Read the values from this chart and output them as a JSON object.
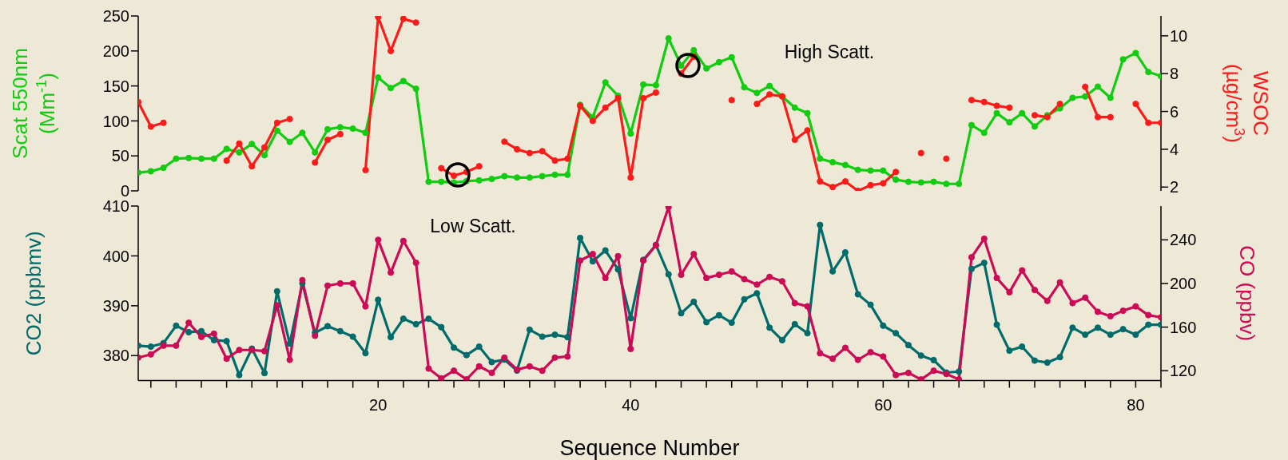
{
  "chart_data": [
    {
      "type": "line",
      "xlim": [
        1,
        82
      ],
      "tick_labels": "y",
      "ylabel": "Scat 550nm\n(Mm$^{-1}$)",
      "y2label": "WSOC\n(µg/cm$^{3}$)",
      "ylim": [
        0,
        250
      ],
      "yticks": [
        0,
        50,
        100,
        150,
        200,
        250
      ],
      "y2lim": [
        1.8,
        11.05
      ],
      "y2ticks": [
        2,
        4,
        6,
        8,
        10
      ],
      "marker": "circle",
      "annotations": [
        "High Scatt."
      ],
      "x": [
        1,
        2,
        3,
        4,
        5,
        6,
        7,
        8,
        9,
        10,
        11,
        12,
        13,
        14,
        15,
        16,
        17,
        18,
        19,
        20,
        21,
        22,
        23,
        24,
        25,
        26,
        27,
        28,
        29,
        30,
        31,
        32,
        33,
        34,
        35,
        36,
        37,
        38,
        39,
        40,
        41,
        42,
        43,
        44,
        45,
        46,
        47,
        48,
        49,
        50,
        51,
        52,
        53,
        54,
        55,
        56,
        57,
        58,
        59,
        60,
        61,
        62,
        63,
        64,
        65,
        66,
        67,
        68,
        69,
        70,
        71,
        72,
        73,
        74,
        75,
        76,
        77,
        78,
        79,
        80,
        81,
        82
      ],
      "series": [
        {
          "color": "#11cc11",
          "values": [
            26,
            28,
            33,
            46,
            47,
            46,
            46,
            60,
            55,
            67,
            51,
            86,
            70,
            83,
            55,
            88,
            91,
            89,
            83,
            162,
            147,
            157,
            146,
            13,
            13,
            12,
            14,
            15,
            17,
            21,
            19,
            19,
            21,
            23,
            23,
            123,
            105,
            155,
            136,
            82,
            152,
            151,
            218,
            179,
            201,
            175,
            184,
            191,
            148,
            140,
            150,
            135,
            119,
            111,
            46,
            41,
            37,
            30,
            29,
            29,
            16,
            13,
            12,
            13,
            10,
            10,
            94,
            83,
            111,
            98,
            111,
            92,
            108,
            118,
            133,
            135,
            149,
            133,
            188,
            197,
            170,
            164
          ]
        },
        {
          "color": "#ff1a1a",
          "axis": "y2",
          "values": [
            6.5,
            5.2,
            5.4,
            null,
            null,
            null,
            null,
            3.4,
            4.3,
            3.1,
            4.1,
            5.4,
            5.6,
            null,
            3.3,
            4.5,
            4.8,
            null,
            2.9,
            11.0,
            9.2,
            10.9,
            10.7,
            null,
            3.0,
            2.6,
            2.8,
            3.1,
            null,
            4.4,
            4.0,
            3.8,
            3.9,
            3.4,
            3.5,
            6.3,
            5.5,
            6.2,
            6.7,
            2.5,
            6.7,
            7.0,
            null,
            8.0,
            8.9,
            null,
            null,
            6.6,
            null,
            6.4,
            6.9,
            6.8,
            4.5,
            5.0,
            2.3,
            2.0,
            2.3,
            1.8,
            2.1,
            2.2,
            2.8,
            null,
            3.8,
            null,
            3.5,
            null,
            6.6,
            6.5,
            6.3,
            6.2,
            null,
            5.8,
            5.7,
            6.4,
            null,
            7.3,
            5.7,
            5.7,
            null,
            6.4,
            5.4,
            5.4
          ]
        }
      ]
    },
    {
      "type": "line",
      "xlim": [
        1,
        82
      ],
      "xticks": [
        {
          "value": 2,
          "label": null
        },
        {
          "value": 4,
          "label": null
        },
        {
          "value": 6,
          "label": null
        },
        {
          "value": 8,
          "label": null
        },
        {
          "value": 10,
          "label": null
        },
        {
          "value": 12,
          "label": null
        },
        {
          "value": 14,
          "label": null
        },
        {
          "value": 16,
          "label": null
        },
        {
          "value": 18,
          "label": null
        },
        20,
        {
          "value": 22,
          "label": null
        },
        {
          "value": 24,
          "label": null
        },
        {
          "value": 26,
          "label": null
        },
        {
          "value": 28,
          "label": null
        },
        {
          "value": 30,
          "label": null
        },
        {
          "value": 32,
          "label": null
        },
        {
          "value": 34,
          "label": null
        },
        {
          "value": 36,
          "label": null
        },
        {
          "value": 38,
          "label": null
        },
        40,
        {
          "value": 42,
          "label": null
        },
        {
          "value": 44,
          "label": null
        },
        {
          "value": 46,
          "label": null
        },
        {
          "value": 48,
          "label": null
        },
        {
          "value": 50,
          "label": null
        },
        {
          "value": 52,
          "label": null
        },
        {
          "value": 54,
          "label": null
        },
        {
          "value": 56,
          "label": null
        },
        {
          "value": 58,
          "label": null
        },
        60,
        {
          "value": 62,
          "label": null
        },
        {
          "value": 64,
          "label": null
        },
        {
          "value": 66,
          "label": null
        },
        {
          "value": 68,
          "label": null
        },
        {
          "value": 70,
          "label": null
        },
        {
          "value": 72,
          "label": null
        },
        {
          "value": 74,
          "label": null
        },
        {
          "value": 76,
          "label": null
        },
        {
          "value": 78,
          "label": null
        },
        80,
        {
          "value": 82,
          "label": null
        }
      ],
      "xlabel": "Sequence Number",
      "ylabel": "CO2 (ppbmv)",
      "y2label": "CO (ppbv)",
      "ylim": [
        375,
        410
      ],
      "yticks": [
        380,
        390,
        400,
        410
      ],
      "y2lim": [
        111,
        271
      ],
      "y2ticks": [
        120,
        160,
        200,
        240
      ],
      "marker": "circle",
      "annotations": [
        "Low Scatt."
      ],
      "x": [
        1,
        2,
        3,
        4,
        5,
        6,
        7,
        8,
        9,
        10,
        11,
        12,
        13,
        14,
        15,
        16,
        17,
        18,
        19,
        20,
        21,
        22,
        23,
        24,
        25,
        26,
        27,
        28,
        29,
        30,
        31,
        32,
        33,
        34,
        35,
        36,
        37,
        38,
        39,
        40,
        41,
        42,
        43,
        44,
        45,
        46,
        47,
        48,
        49,
        50,
        51,
        52,
        53,
        54,
        55,
        56,
        57,
        58,
        59,
        60,
        61,
        62,
        63,
        64,
        65,
        66,
        67,
        68,
        69,
        70,
        71,
        72,
        73,
        74,
        75,
        76,
        77,
        78,
        79,
        80,
        81,
        82
      ],
      "series": [
        {
          "color": "#006b6b",
          "values": [
            382.0,
            381.8,
            382.5,
            386.0,
            384.7,
            384.9,
            383.1,
            382.9,
            376.1,
            381.4,
            376.5,
            392.9,
            382.4,
            394.5,
            384.6,
            385.9,
            384.9,
            383.8,
            380.5,
            391.2,
            383.7,
            387.4,
            386.3,
            387.4,
            385.7,
            381.6,
            380.1,
            381.8,
            378.7,
            379.2,
            377.0,
            385.2,
            383.8,
            384.2,
            383.7,
            403.6,
            398.9,
            401.1,
            397.3,
            387.5,
            399.2,
            402.2,
            396.3,
            388.5,
            390.8,
            386.7,
            388.1,
            386.6,
            391.3,
            392.5,
            385.6,
            383.1,
            386.3,
            384.5,
            406.2,
            396.9,
            400.7,
            392.3,
            390.2,
            386.0,
            384.5,
            382.1,
            380.0,
            379.1,
            376.6,
            376.8,
            397.4,
            398.6,
            386.2,
            381.0,
            381.8,
            379.0,
            378.6,
            379.7,
            385.6,
            384.2,
            385.6,
            384.2,
            385.3,
            384.2,
            386.2,
            386.2
          ]
        },
        {
          "color": "#cc0a55",
          "axis": "y2",
          "values": [
            132,
            135,
            143,
            143,
            164,
            151,
            154,
            131,
            139,
            139,
            138,
            180,
            130,
            203,
            152,
            198,
            200,
            200,
            179,
            240,
            210,
            239,
            219,
            122,
            113,
            120,
            112,
            124,
            118,
            132,
            121,
            124,
            120,
            132,
            133,
            221,
            227,
            205,
            225,
            140,
            221,
            235,
            270,
            208,
            227,
            205,
            208,
            211,
            204,
            199,
            206,
            202,
            182,
            179,
            136,
            131,
            141,
            130,
            137,
            133,
            116,
            118,
            112,
            120,
            117,
            112,
            224,
            241,
            205,
            192,
            212,
            194,
            184,
            201,
            182,
            187,
            174,
            170,
            175,
            179,
            171,
            169
          ]
        }
      ]
    }
  ]
}
